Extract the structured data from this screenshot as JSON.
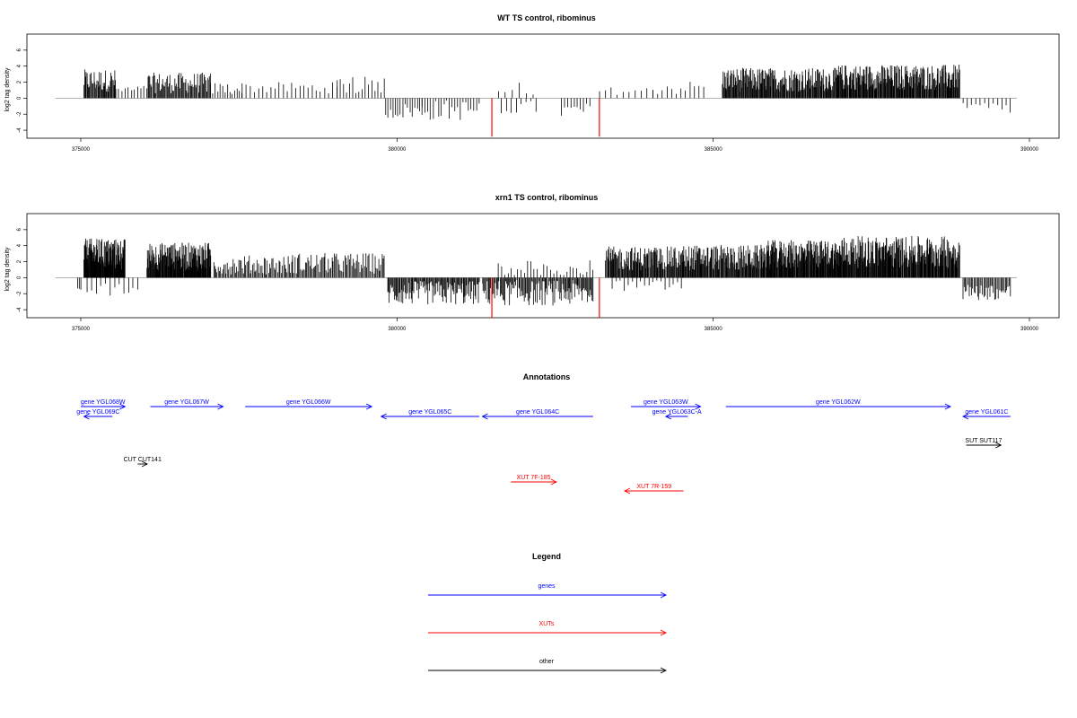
{
  "colors": {
    "gene": "#0000ff",
    "xut": "#ff0000",
    "other": "#000000",
    "axis": "#000000",
    "zero": "#999999"
  },
  "chart_data": [
    {
      "type": "bar",
      "title": "WT TS control, ribominus",
      "xlabel": "",
      "ylabel": "log2 tag density",
      "xlim": [
        374300,
        389800
      ],
      "ylim": [
        -5,
        8
      ],
      "xticks": [
        375000,
        380000,
        385000,
        390000
      ],
      "yticks": [
        -4,
        -2,
        0,
        2,
        4,
        6
      ],
      "highlight_color": "#ff0000",
      "highlights": [
        {
          "x": 381500,
          "y": -4.8
        },
        {
          "x": 383200,
          "y": -4.8
        }
      ],
      "segments": [
        {
          "x0": 375050,
          "x1": 375550,
          "mean": 2.2,
          "amp": 1.4,
          "count": 42
        },
        {
          "x0": 375550,
          "x1": 376000,
          "mean": 1.0,
          "amp": 0.6,
          "count": 10
        },
        {
          "x0": 376050,
          "x1": 377050,
          "mean": 1.9,
          "amp": 1.3,
          "count": 70
        },
        {
          "x0": 377050,
          "x1": 377550,
          "mean": 1.2,
          "amp": 0.8,
          "count": 14
        },
        {
          "x0": 377550,
          "x1": 379050,
          "mean": 1.3,
          "amp": 0.7,
          "count": 24
        },
        {
          "x0": 379050,
          "x1": 379800,
          "mean": 1.3,
          "amp": 1.6,
          "count": 16
        },
        {
          "x0": 379820,
          "x1": 380400,
          "mean": -1.6,
          "amp": 1.0,
          "count": 16
        },
        {
          "x0": 380400,
          "x1": 381300,
          "mean": -1.5,
          "amp": 1.3,
          "count": 22
        },
        {
          "x0": 381600,
          "x1": 382150,
          "mean": 0.9,
          "amp": 1.1,
          "count": 6
        },
        {
          "x0": 381650,
          "x1": 382200,
          "mean": -1.2,
          "amp": 0.9,
          "count": 8
        },
        {
          "x0": 382600,
          "x1": 383050,
          "mean": -1.6,
          "amp": 1.0,
          "count": 10
        },
        {
          "x0": 383200,
          "x1": 384050,
          "mean": 0.9,
          "amp": 0.5,
          "count": 10
        },
        {
          "x0": 384050,
          "x1": 384850,
          "mean": 1.3,
          "amp": 0.9,
          "count": 12
        },
        {
          "x0": 385150,
          "x1": 386950,
          "mean": 2.3,
          "amp": 1.5,
          "count": 190
        },
        {
          "x0": 386950,
          "x1": 388900,
          "mean": 2.6,
          "amp": 1.6,
          "count": 230
        },
        {
          "x0": 388950,
          "x1": 389700,
          "mean": -1.2,
          "amp": 0.8,
          "count": 12
        }
      ]
    },
    {
      "type": "bar",
      "title": "xrn1 TS control, ribominus",
      "xlabel": "",
      "ylabel": "log2 tag density",
      "xlim": [
        374300,
        389800
      ],
      "ylim": [
        -5,
        8
      ],
      "xticks": [
        375000,
        380000,
        385000,
        390000
      ],
      "yticks": [
        -4,
        -2,
        0,
        2,
        4,
        6
      ],
      "highlight_color": "#ff0000",
      "highlights": [
        {
          "x": 381500,
          "y": -5.0
        },
        {
          "x": 383200,
          "y": -5.0
        }
      ],
      "segments": [
        {
          "x0": 374950,
          "x1": 375000,
          "mean": -1.5,
          "amp": 0.3,
          "count": 3
        },
        {
          "x0": 375050,
          "x1": 375700,
          "mean": 2.9,
          "amp": 2.0,
          "count": 150
        },
        {
          "x0": 375100,
          "x1": 375900,
          "mean": -1.6,
          "amp": 0.9,
          "count": 12
        },
        {
          "x0": 376050,
          "x1": 377050,
          "mean": 2.6,
          "amp": 1.8,
          "count": 170
        },
        {
          "x0": 377100,
          "x1": 378350,
          "mean": 1.6,
          "amp": 1.2,
          "count": 70
        },
        {
          "x0": 378350,
          "x1": 379800,
          "mean": 1.8,
          "amp": 1.3,
          "count": 80
        },
        {
          "x0": 379850,
          "x1": 381300,
          "mean": -1.9,
          "amp": 1.5,
          "count": 110
        },
        {
          "x0": 381350,
          "x1": 383100,
          "mean": -1.9,
          "amp": 1.6,
          "count": 120
        },
        {
          "x0": 381600,
          "x1": 383100,
          "mean": 1.2,
          "amp": 1.0,
          "count": 30
        },
        {
          "x0": 383300,
          "x1": 384500,
          "mean": 2.4,
          "amp": 1.5,
          "count": 120
        },
        {
          "x0": 383400,
          "x1": 384500,
          "mean": -1.0,
          "amp": 0.7,
          "count": 18
        },
        {
          "x0": 384500,
          "x1": 385800,
          "mean": 2.5,
          "amp": 1.6,
          "count": 140
        },
        {
          "x0": 385800,
          "x1": 387000,
          "mean": 2.9,
          "amp": 1.8,
          "count": 180
        },
        {
          "x0": 387000,
          "x1": 388900,
          "mean": 3.2,
          "amp": 2.0,
          "count": 260
        },
        {
          "x0": 388950,
          "x1": 389700,
          "mean": -1.8,
          "amp": 1.0,
          "count": 40
        }
      ]
    }
  ],
  "annotations": {
    "title": "Annotations",
    "items": [
      {
        "label": "gene YGL068W",
        "type": "gene",
        "start": 375000,
        "end": 375700,
        "strand": "+",
        "row": 0
      },
      {
        "label": "gene YGL069C",
        "type": "gene",
        "start": 375050,
        "end": 375500,
        "strand": "-",
        "row": 1
      },
      {
        "label": "gene YGL067W",
        "type": "gene",
        "start": 376100,
        "end": 377250,
        "strand": "+",
        "row": 0
      },
      {
        "label": "gene YGL066W",
        "type": "gene",
        "start": 377600,
        "end": 379600,
        "strand": "+",
        "row": 0
      },
      {
        "label": "gene YGL065C",
        "type": "gene",
        "start": 379750,
        "end": 381300,
        "strand": "-",
        "row": 1
      },
      {
        "label": "gene YGL064C",
        "type": "gene",
        "start": 381350,
        "end": 383100,
        "strand": "-",
        "row": 1
      },
      {
        "label": "gene YGL063W",
        "type": "gene",
        "start": 383700,
        "end": 384800,
        "strand": "+",
        "row": 0
      },
      {
        "label": "gene YGL063C-A",
        "type": "gene",
        "start": 384250,
        "end": 384600,
        "strand": "-",
        "row": 1
      },
      {
        "label": "gene YGL062W",
        "type": "gene",
        "start": 385200,
        "end": 388750,
        "strand": "+",
        "row": 0
      },
      {
        "label": "gene YGL061C",
        "type": "gene",
        "start": 388950,
        "end": 389700,
        "strand": "-",
        "row": 1
      },
      {
        "label": "CUT CUT141",
        "type": "other",
        "start": 375900,
        "end": 376050,
        "strand": "+",
        "row": 3
      },
      {
        "label": "SUT SUT117",
        "type": "other",
        "start": 389000,
        "end": 389550,
        "strand": "+",
        "row": 2
      },
      {
        "label": "XUT 7F-185",
        "type": "xut",
        "start": 381800,
        "end": 382520,
        "strand": "+",
        "row": 4
      },
      {
        "label": "XUT 7R-159",
        "type": "xut",
        "start": 383600,
        "end": 384530,
        "strand": "-",
        "row": 5
      }
    ]
  },
  "legend": {
    "title": "Legend",
    "items": [
      {
        "label": "genes",
        "type": "gene"
      },
      {
        "label": "XUTs",
        "type": "xut"
      },
      {
        "label": "other",
        "type": "other"
      }
    ]
  }
}
